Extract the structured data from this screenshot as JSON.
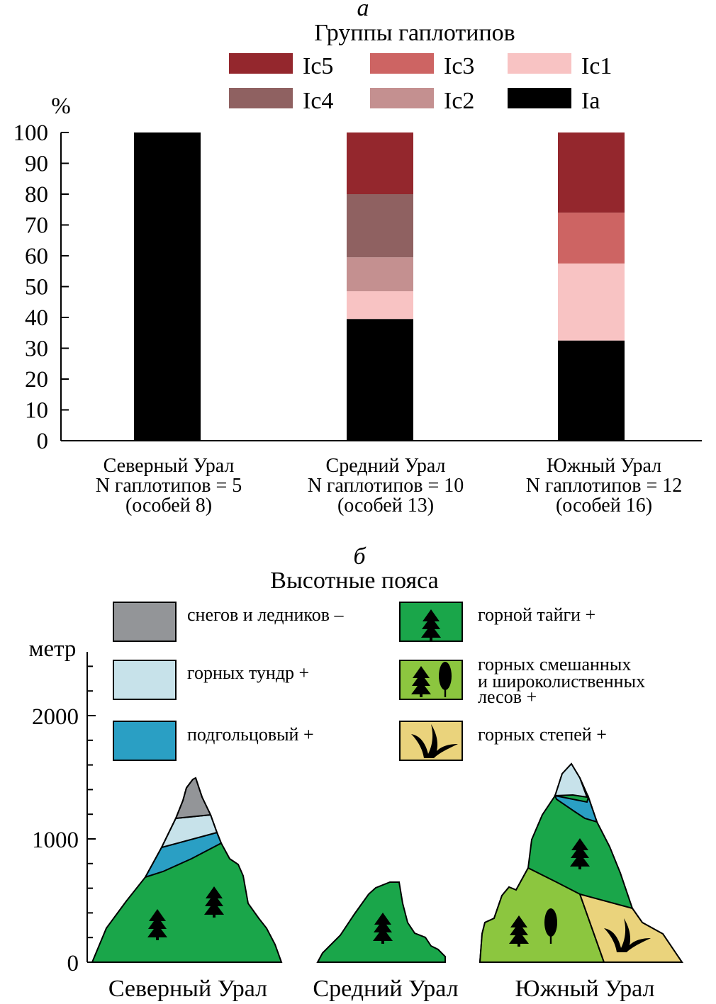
{
  "chart_data": [
    {
      "type": "bar",
      "stacked": true,
      "panel_label": "а",
      "legend_title": "Группы гаплотипов",
      "legend_placement": "top",
      "ylabel": "%",
      "ylim": [
        0,
        100
      ],
      "yticks": [
        0,
        10,
        20,
        30,
        40,
        50,
        60,
        70,
        80,
        90,
        100
      ],
      "grid": false,
      "categories": [
        {
          "name": "Северный Урал",
          "haplotypes": "N гаплотипов = 5",
          "individuals": "(особей 8)"
        },
        {
          "name": "Средний Урал",
          "haplotypes": "N гаплотипов = 10",
          "individuals": "(особей 13)"
        },
        {
          "name": "Южный Урал",
          "haplotypes": "N гаплотипов = 12",
          "individuals": "(особей 16)"
        }
      ],
      "series": [
        {
          "name": "Ia",
          "color": "#000000",
          "values": [
            100,
            39.5,
            32.5
          ]
        },
        {
          "name": "Ic1",
          "color": "#f8c3c3",
          "values": [
            0,
            9,
            25
          ]
        },
        {
          "name": "Ic2",
          "color": "#c49090",
          "values": [
            0,
            11,
            0
          ]
        },
        {
          "name": "Ic3",
          "color": "#cd6463",
          "values": [
            0,
            0,
            16.5
          ]
        },
        {
          "name": "Ic4",
          "color": "#8f6161",
          "values": [
            0,
            20.5,
            0
          ]
        },
        {
          "name": "Ic5",
          "color": "#94272d",
          "values": [
            0,
            20,
            26
          ]
        }
      ],
      "legend_order": [
        "Ic5",
        "Ic3",
        "Ic1",
        "Ic4",
        "Ic2",
        "Ia"
      ]
    },
    {
      "type": "diagram",
      "panel_label": "б",
      "legend_title": "Высотные пояса",
      "ylabel": "метр",
      "ylim": [
        0,
        2500
      ],
      "yticks": [
        0,
        1000,
        2000
      ],
      "belts": [
        {
          "key": "snow",
          "label": "снегов и ледников –",
          "color": "#939598"
        },
        {
          "key": "taiga",
          "label": "горной тайги +",
          "color": "#1aa64a"
        },
        {
          "key": "tundra",
          "label": "горных тундр +",
          "color": "#c7e2ea"
        },
        {
          "key": "mixed",
          "label_lines": [
            "горных смешанных",
            "и широколиственных",
            "лесов +"
          ],
          "color": "#8cc63f"
        },
        {
          "key": "subalpine",
          "label": "подгольцовый +",
          "color": "#2a9fc4"
        },
        {
          "key": "steppe",
          "label": "горных степей +",
          "color": "#ead37c"
        }
      ],
      "mountains": [
        {
          "name": "Северный Урал",
          "peak_m": 1500
        },
        {
          "name": "Средний Урал",
          "peak_m": 650
        },
        {
          "name": "Южный Урал",
          "peak_m": 1600
        }
      ]
    }
  ]
}
